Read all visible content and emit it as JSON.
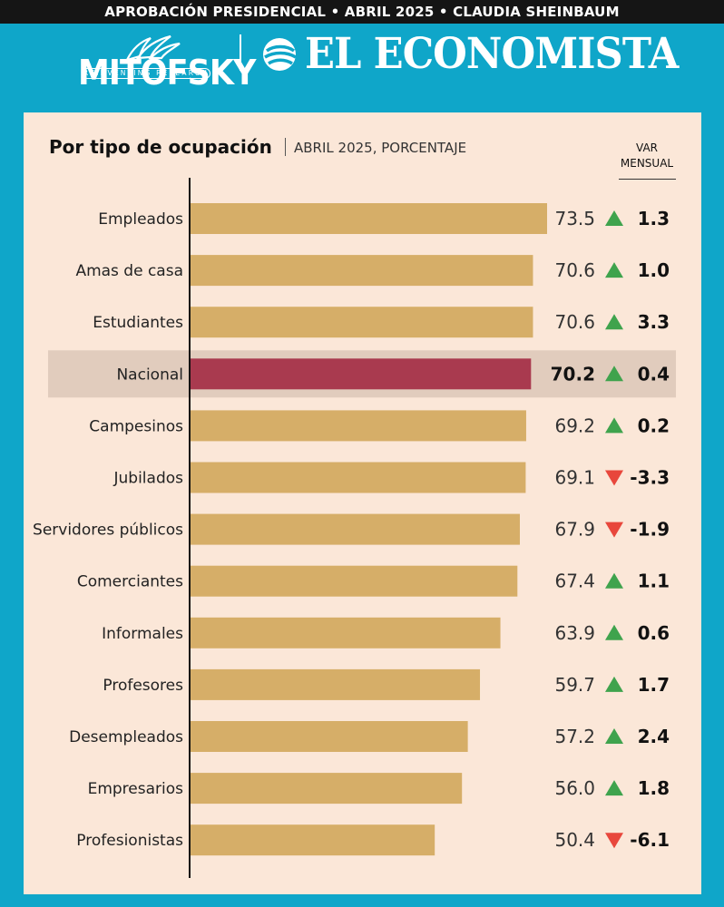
{
  "header": {
    "banner": "APROBACIÓN PRESIDENCIAL • ABRIL 2025 • CLAUDIA SHEINBAUM",
    "mitofsky_name": "MITOFSKY",
    "mitofsky_tagline": "REINVENTING RESEARCH",
    "economista_name": "EL ECONOMISTA"
  },
  "colors": {
    "background": "#0FA6C9",
    "panel": "#FBE7D8",
    "bar": "#D6AE68",
    "highlight_bar": "#A93A4F",
    "highlight_row": "#E1CCBD",
    "up": "#3FA34D",
    "down": "#E8473C"
  },
  "chart_data": {
    "type": "bar",
    "orientation": "horizontal",
    "title": "Por tipo de ocupación",
    "subtitle": "ABRIL 2025, PORCENTAJE",
    "change_header": "VAR MENSUAL",
    "highlight": "Nacional",
    "categories": [
      "Empleados",
      "Amas de casa",
      "Estudiantes",
      "Nacional",
      "Campesinos",
      "Jubilados",
      "Servidores públicos",
      "Comerciantes",
      "Informales",
      "Profesores",
      "Desempleados",
      "Empresarios",
      "Profesionistas"
    ],
    "values": [
      73.5,
      70.6,
      70.6,
      70.2,
      69.2,
      69.1,
      67.9,
      67.4,
      63.9,
      59.7,
      57.2,
      56.0,
      50.4
    ],
    "value_labels": [
      "73.5",
      "70.6",
      "70.6",
      "70.2",
      "69.2",
      "69.1",
      "67.9",
      "67.4",
      "63.9",
      "59.7",
      "57.2",
      "56.0",
      "50.4"
    ],
    "changes": [
      1.3,
      1.0,
      3.3,
      0.4,
      0.2,
      -3.3,
      -1.9,
      1.1,
      0.6,
      1.7,
      2.4,
      1.8,
      -6.1
    ],
    "change_labels": [
      "1.3",
      "1.0",
      "3.3",
      "0.4",
      "0.2",
      "-3.3",
      "-1.9",
      "1.1",
      "0.6",
      "1.7",
      "2.4",
      "1.8",
      "-6.1"
    ],
    "direction_icons": [
      "triangle-up-icon",
      "triangle-up-icon",
      "triangle-up-icon",
      "triangle-up-icon",
      "triangle-up-icon",
      "triangle-down-icon",
      "triangle-down-icon",
      "triangle-up-icon",
      "triangle-up-icon",
      "triangle-up-icon",
      "triangle-up-icon",
      "triangle-up-icon",
      "triangle-down-icon"
    ]
  }
}
